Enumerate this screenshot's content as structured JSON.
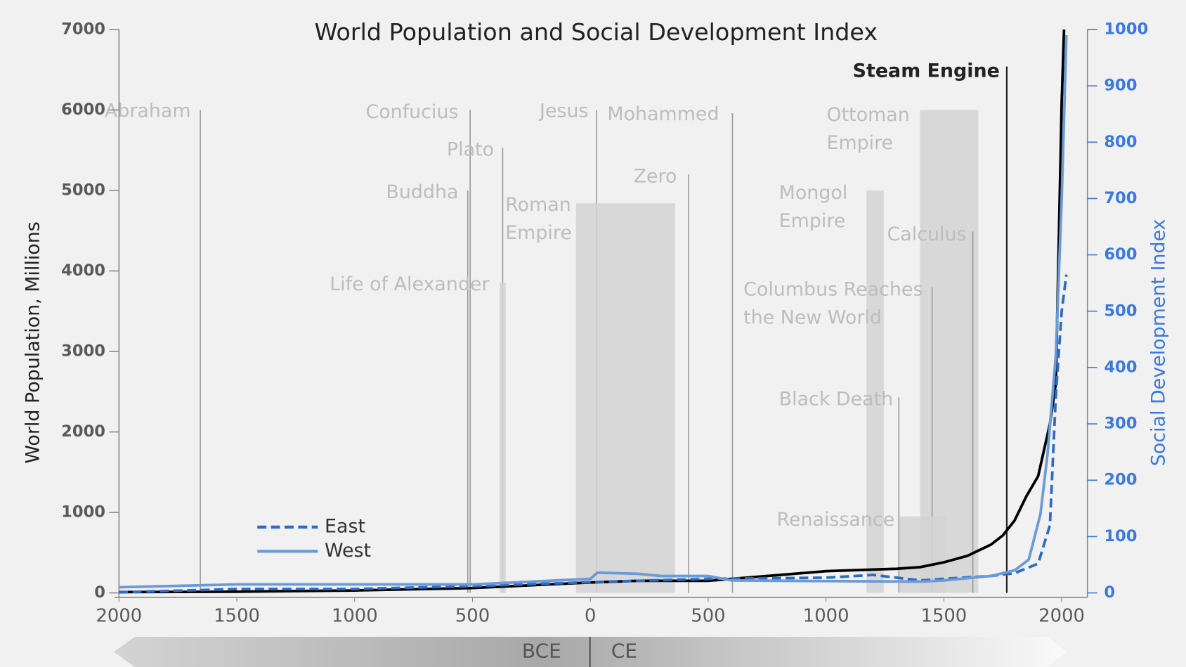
{
  "chart_data": {
    "type": "line",
    "title": "World Population and Social Development Index",
    "ylabel": "World Population, Millions",
    "y2label": "Social Development Index",
    "xlim": [
      -2000,
      2100
    ],
    "ylim": [
      0,
      7000
    ],
    "y2lim": [
      0,
      1000
    ],
    "xticks": [
      {
        "value": -2000,
        "label": "2000"
      },
      {
        "value": -1500,
        "label": "1500"
      },
      {
        "value": -1000,
        "label": "1000"
      },
      {
        "value": -500,
        "label": "500"
      },
      0,
      500,
      1000,
      1500,
      2000
    ],
    "yticks": [
      0,
      1000,
      2000,
      3000,
      4000,
      5000,
      6000,
      7000
    ],
    "y2ticks": [
      0,
      100,
      200,
      300,
      400,
      500,
      600,
      700,
      800,
      900,
      1000
    ],
    "legend": "lower left",
    "series": [
      {
        "color": "#000000",
        "style": "solid",
        "x": [
          -2000,
          -1500,
          -1000,
          -500,
          0,
          200,
          500,
          1000,
          1300,
          1400,
          1500,
          1600,
          1700,
          1750,
          1800,
          1850,
          1900,
          1950,
          1975,
          2000,
          2010
        ],
        "values": [
          10,
          15,
          30,
          60,
          130,
          150,
          150,
          270,
          300,
          320,
          380,
          460,
          600,
          714,
          900,
          1200,
          1450,
          2100,
          2600,
          6100,
          7000
        ]
      },
      {
        "name": "East",
        "color": "#2f6bc4",
        "style": "dashed",
        "axis": "y2",
        "x": [
          -2000,
          -1500,
          -1000,
          -500,
          0,
          500,
          1000,
          1200,
          1400,
          1500,
          1700,
          1800,
          1900,
          1950,
          1975,
          2000,
          2020
        ],
        "values": [
          1,
          7,
          7,
          12,
          19,
          25,
          27,
          32,
          22,
          25,
          30,
          35,
          52,
          120,
          350,
          500,
          565
        ]
      },
      {
        "name": "West",
        "color": "#6a9ad8",
        "style": "solid",
        "axis": "y2",
        "x": [
          -2000,
          -1500,
          -1000,
          -500,
          0,
          30,
          200,
          300,
          500,
          600,
          1000,
          1400,
          1500,
          1700,
          1800,
          1860,
          1910,
          1940,
          1975,
          2000,
          2020
        ],
        "values": [
          10,
          15,
          15,
          15,
          25,
          36,
          34,
          30,
          30,
          22,
          21,
          20,
          22,
          30,
          40,
          59,
          140,
          247,
          421,
          700,
          990
        ]
      }
    ],
    "annotations": [
      {
        "label": [
          "Abraham"
        ],
        "x": -1655,
        "y": 6000
      },
      {
        "label": [
          "Confucius"
        ],
        "x": -510,
        "y": 6000
      },
      {
        "label": [
          "Plato"
        ],
        "x": -372,
        "y": 5530
      },
      {
        "label": [
          "Buddha"
        ],
        "x": -520,
        "y": 5000
      },
      {
        "label": [
          "Life of Alexander"
        ],
        "x": [
          -385,
          -359
        ],
        "y": 3850
      },
      {
        "label": [
          "Jesus"
        ],
        "x": 26,
        "y": 6000
      },
      {
        "label": [
          "Mohammed"
        ],
        "x": 603,
        "y": 5960
      },
      {
        "label": [
          "Zero"
        ],
        "x": 417,
        "y": 5200
      },
      {
        "label": [
          "Roman",
          "Empire"
        ],
        "x": [
          -61,
          359
        ],
        "y": 4840
      },
      {
        "label": [
          "Mongol",
          "Empire"
        ],
        "x": [
          1171,
          1245
        ],
        "y": 5000
      },
      {
        "label": [
          "Ottoman",
          "Empire"
        ],
        "x": [
          1399,
          1646
        ],
        "y": 6000
      },
      {
        "label": [
          "Calculus"
        ],
        "x": 1623,
        "y": 4490
      },
      {
        "label": [
          "Columbus Reaches",
          "the New World"
        ],
        "x": 1450,
        "y": 3800
      },
      {
        "label": [
          "Black Death"
        ],
        "x": 1309,
        "y": 2430
      },
      {
        "label": [
          "Renaissance"
        ],
        "x": [
          1312,
          1508
        ],
        "y": 950
      },
      {
        "label": [
          "Steam Engine"
        ],
        "x": 1767,
        "y": 6540,
        "bold": true
      }
    ],
    "era_labels": [
      "BCE",
      "CE"
    ]
  }
}
